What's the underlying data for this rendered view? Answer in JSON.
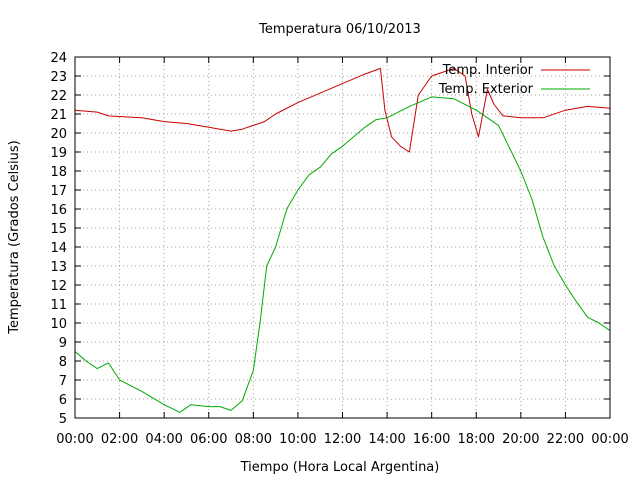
{
  "chart_data": {
    "type": "line",
    "title": "Temperatura 06/10/2013",
    "xlabel": "Tiempo (Hora Local Argentina)",
    "ylabel": "Temperatura (Grados Celsius)",
    "x_unit": "hours",
    "xlim": [
      0,
      24
    ],
    "ylim": [
      5,
      24
    ],
    "x_ticks": [
      {
        "value": 0,
        "label": "00:00"
      },
      {
        "value": 2,
        "label": "02:00"
      },
      {
        "value": 4,
        "label": "04:00"
      },
      {
        "value": 6,
        "label": "06:00"
      },
      {
        "value": 8,
        "label": "08:00"
      },
      {
        "value": 10,
        "label": "10:00"
      },
      {
        "value": 12,
        "label": "12:00"
      },
      {
        "value": 14,
        "label": "14:00"
      },
      {
        "value": 16,
        "label": "16:00"
      },
      {
        "value": 18,
        "label": "18:00"
      },
      {
        "value": 20,
        "label": "20:00"
      },
      {
        "value": 22,
        "label": "22:00"
      },
      {
        "value": 24,
        "label": "00:00"
      }
    ],
    "y_ticks": [
      5,
      6,
      7,
      8,
      9,
      10,
      11,
      12,
      13,
      14,
      15,
      16,
      17,
      18,
      19,
      20,
      21,
      22,
      23,
      24
    ],
    "grid": true,
    "legend_position": "top-right",
    "series": [
      {
        "name": "Temp. Interior",
        "color": "#cc0000",
        "points": [
          [
            0,
            21.2
          ],
          [
            1,
            21.1
          ],
          [
            1.5,
            20.9
          ],
          [
            3,
            20.8
          ],
          [
            4,
            20.6
          ],
          [
            5,
            20.5
          ],
          [
            6,
            20.3
          ],
          [
            7,
            20.1
          ],
          [
            7.5,
            20.2
          ],
          [
            8,
            20.4
          ],
          [
            8.5,
            20.6
          ],
          [
            9,
            21.0
          ],
          [
            10,
            21.6
          ],
          [
            11,
            22.1
          ],
          [
            12,
            22.6
          ],
          [
            13,
            23.1
          ],
          [
            13.7,
            23.4
          ],
          [
            13.9,
            21.2
          ],
          [
            14.2,
            19.8
          ],
          [
            14.6,
            19.3
          ],
          [
            15,
            19.0
          ],
          [
            15.4,
            22.0
          ],
          [
            16,
            23.0
          ],
          [
            17,
            23.4
          ],
          [
            17.5,
            23.0
          ],
          [
            17.8,
            21.0
          ],
          [
            18.1,
            19.8
          ],
          [
            18.5,
            22.3
          ],
          [
            18.8,
            21.5
          ],
          [
            19.2,
            20.9
          ],
          [
            20,
            20.8
          ],
          [
            21,
            20.8
          ],
          [
            22,
            21.2
          ],
          [
            23,
            21.4
          ],
          [
            24,
            21.3
          ]
        ]
      },
      {
        "name": "Temp. Exterior",
        "color": "#00aa00",
        "points": [
          [
            0,
            8.5
          ],
          [
            0.5,
            8.0
          ],
          [
            1,
            7.6
          ],
          [
            1.5,
            7.9
          ],
          [
            2,
            7.0
          ],
          [
            3,
            6.4
          ],
          [
            4,
            5.7
          ],
          [
            4.7,
            5.3
          ],
          [
            5.2,
            5.7
          ],
          [
            6,
            5.6
          ],
          [
            6.5,
            5.6
          ],
          [
            7,
            5.4
          ],
          [
            7.5,
            5.9
          ],
          [
            8,
            7.5
          ],
          [
            8.3,
            10.0
          ],
          [
            8.6,
            13.0
          ],
          [
            9,
            14.0
          ],
          [
            9.5,
            16.0
          ],
          [
            10,
            17.0
          ],
          [
            10.5,
            17.8
          ],
          [
            11,
            18.2
          ],
          [
            11.5,
            18.9
          ],
          [
            12,
            19.3
          ],
          [
            12.5,
            19.8
          ],
          [
            13,
            20.3
          ],
          [
            13.5,
            20.7
          ],
          [
            14,
            20.8
          ],
          [
            15,
            21.4
          ],
          [
            16,
            21.9
          ],
          [
            17,
            21.8
          ],
          [
            18,
            21.2
          ],
          [
            19,
            20.4
          ],
          [
            20,
            18.0
          ],
          [
            20.5,
            16.5
          ],
          [
            21,
            14.5
          ],
          [
            21.5,
            13.0
          ],
          [
            22,
            12.0
          ],
          [
            22.5,
            11.1
          ],
          [
            23,
            10.3
          ],
          [
            23.5,
            10.0
          ],
          [
            24,
            9.6
          ]
        ]
      }
    ]
  }
}
